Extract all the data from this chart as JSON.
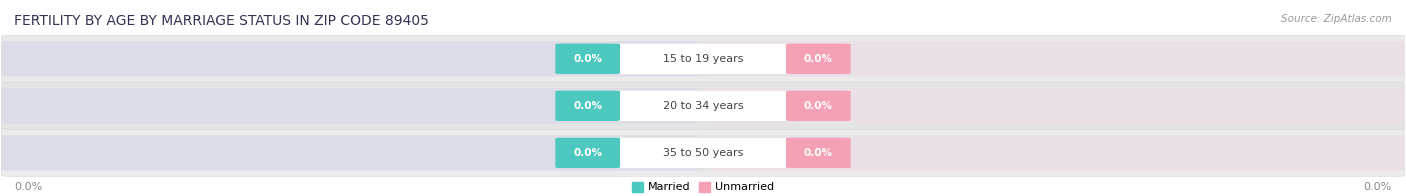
{
  "title": "FERTILITY BY AGE BY MARRIAGE STATUS IN ZIP CODE 89405",
  "source": "Source: ZipAtlas.com",
  "categories": [
    "15 to 19 years",
    "20 to 34 years",
    "35 to 50 years"
  ],
  "married_values": [
    0.0,
    0.0,
    0.0
  ],
  "unmarried_values": [
    0.0,
    0.0,
    0.0
  ],
  "married_color": "#4DC8BF",
  "unmarried_color": "#F4A0B5",
  "row_colors": [
    "#EFEFEF",
    "#E8E8E8",
    "#EFEFEF"
  ],
  "bar_bg_left": "#E0E0E8",
  "bar_bg_right": "#EDE8F0",
  "title_fontsize": 10,
  "source_fontsize": 7.5,
  "value_label_fontsize": 7.5,
  "cat_label_fontsize": 8,
  "axis_val_fontsize": 8,
  "legend_fontsize": 8,
  "category_label_color": "#444444",
  "axis_label_color": "#888888",
  "legend_married": "Married",
  "legend_unmarried": "Unmarried",
  "x_left_label": "0.0%",
  "x_right_label": "0.0%",
  "background_color": "#FFFFFF",
  "title_color": "#333355"
}
